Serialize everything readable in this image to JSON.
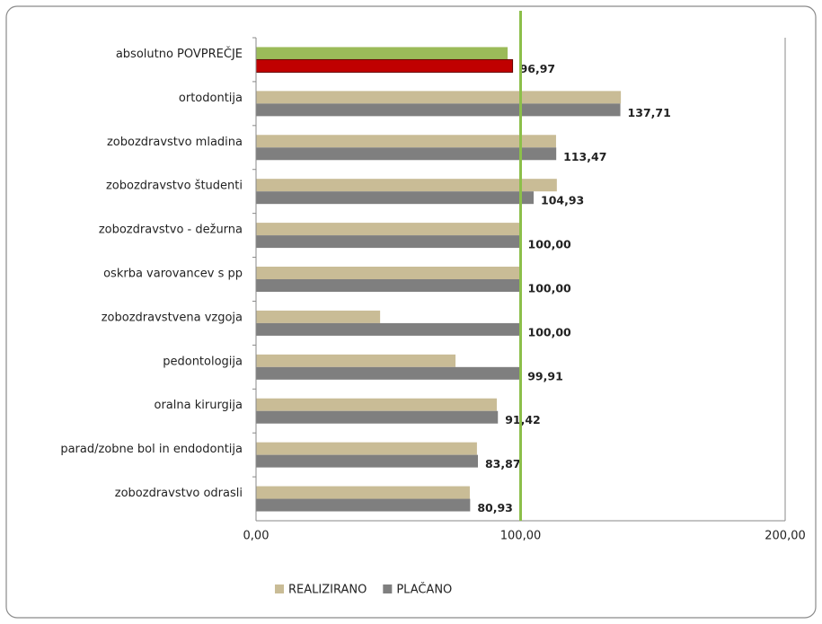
{
  "chart_data": {
    "type": "hbar",
    "categories": [
      "absolutno POVPREČJE",
      "ortodontija",
      "zobozdravstvo mladina",
      "zobozdravstvo študenti",
      "zobozdravstvo - dežurna",
      "oskrba varovancev s pp",
      "zobozdravstvena vzgoja",
      "pedontologija",
      "oralna kirurgija",
      "parad/zobne bol in endodontija",
      "zobozdravstvo odrasli"
    ],
    "series": [
      {
        "name": "REALIZIRANO",
        "color": "#c9bc96",
        "colors": [
          "#9bbb59",
          "#c9bc96",
          "#c9bc96",
          "#c9bc96",
          "#c9bc96",
          "#c9bc96",
          "#c9bc96",
          "#c9bc96",
          "#c9bc96",
          "#c9bc96",
          "#c9bc96"
        ],
        "values": [
          95.1,
          137.9,
          113.4,
          113.7,
          99.5,
          100,
          46.9,
          75.4,
          91,
          83.5,
          80.8
        ]
      },
      {
        "name": "PLAČANO",
        "color": "#7f7f7f",
        "colors": [
          "#c00000",
          "#7f7f7f",
          "#7f7f7f",
          "#7f7f7f",
          "#7f7f7f",
          "#7f7f7f",
          "#7f7f7f",
          "#7f7f7f",
          "#7f7f7f",
          "#7f7f7f",
          "#7f7f7f"
        ],
        "values": [
          96.97,
          137.71,
          113.47,
          104.93,
          100,
          100,
          100,
          99.91,
          91.42,
          83.87,
          80.93
        ],
        "value_labels": [
          "96,97",
          "137,71",
          "113,47",
          "104,93",
          "100,00",
          "100,00",
          "100,00",
          "99,91",
          "91,42",
          "83,87",
          "80,93"
        ]
      }
    ],
    "xlim": [
      0,
      200
    ],
    "xticks": [
      {
        "value": 0,
        "label": "0,00"
      },
      {
        "value": 100,
        "label": "100,00"
      },
      {
        "value": 200,
        "label": "200,00"
      }
    ],
    "grid": true,
    "reference_line": {
      "value": 100,
      "color": "#8cbf4a"
    },
    "legend": "bottom"
  }
}
